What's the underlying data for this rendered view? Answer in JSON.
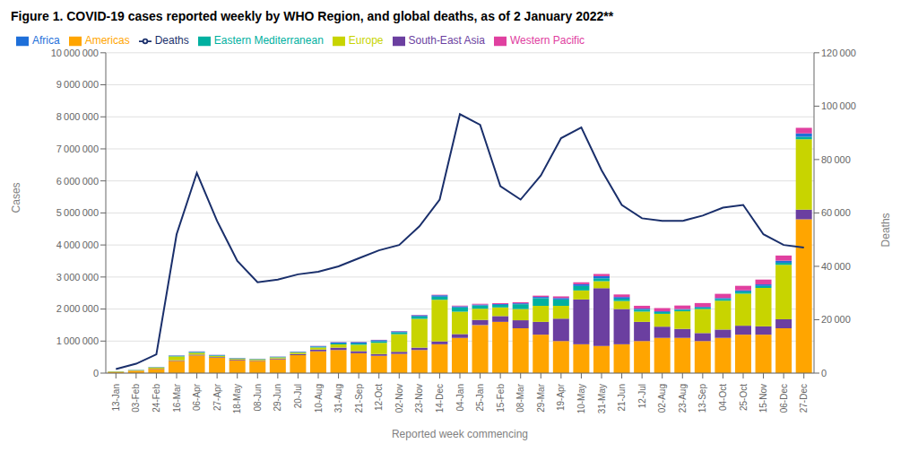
{
  "chart_data": {
    "type": "bar",
    "title": "Figure 1. COVID-19 cases reported weekly by WHO Region, and global deaths, as of 2 January 2022**",
    "x_label": "Reported week commencing",
    "y_label": "Cases",
    "y2_label": "Deaths",
    "stacked": true,
    "grid": true,
    "legend": "upper left",
    "categories": [
      "13-Jan",
      "03-Feb",
      "24-Feb",
      "16-Mar",
      "06-Apr",
      "27-Apr",
      "18-May",
      "08-Jun",
      "29-Jun",
      "20-Jul",
      "10-Aug",
      "31-Aug",
      "21-Sep",
      "12-Oct",
      "02-Nov",
      "23-Nov",
      "14-Dec",
      "04-Jan",
      "25-Jan",
      "15-Feb",
      "08-Mar",
      "29-Mar",
      "19-Apr",
      "10-May",
      "31-May",
      "21-Jun",
      "12-Jul",
      "02-Aug",
      "23-Aug",
      "13-Sep",
      "04-Oct",
      "25-Oct",
      "15-Nov",
      "06-Dec",
      "27-Dec"
    ],
    "ylim": [
      0,
      10000000
    ],
    "yticks": [
      0,
      {
        "value": 1000000,
        "label": "1 000 000"
      },
      {
        "value": 2000000,
        "label": "2 000 000"
      },
      {
        "value": 3000000,
        "label": "3 000 000"
      },
      {
        "value": 4000000,
        "label": "4 000 000"
      },
      {
        "value": 5000000,
        "label": "5 000 000"
      },
      {
        "value": 6000000,
        "label": "6 000 000"
      },
      {
        "value": 7000000,
        "label": "7 000 000"
      },
      {
        "value": 8000000,
        "label": "8 000 000"
      },
      {
        "value": 9000000,
        "label": "9 000 000"
      },
      {
        "value": 10000000,
        "label": "10 000 000"
      }
    ],
    "y2lim": [
      0,
      120000
    ],
    "y2ticks": [
      0,
      {
        "value": 20000,
        "label": "20 000"
      },
      {
        "value": 40000,
        "label": "40 000"
      },
      {
        "value": 60000,
        "label": "60 000"
      },
      {
        "value": 80000,
        "label": "80 000"
      },
      {
        "value": 100000,
        "label": "100 000"
      },
      {
        "value": 120000,
        "label": "120 000"
      }
    ],
    "series": [
      {
        "name": "Americas",
        "type": "bar",
        "color": "#FFA500",
        "values": [
          40000,
          70000,
          130000,
          380000,
          550000,
          480000,
          400000,
          380000,
          430000,
          560000,
          680000,
          720000,
          620000,
          540000,
          600000,
          720000,
          900000,
          1100000,
          1500000,
          1600000,
          1400000,
          1200000,
          1000000,
          900000,
          850000,
          900000,
          1000000,
          1100000,
          1100000,
          1000000,
          1100000,
          1200000,
          1200000,
          1400000,
          4800000
        ]
      },
      {
        "name": "South-East Asia",
        "type": "bar",
        "color": "#6B3FA0",
        "values": [
          3000,
          6000,
          10000,
          20000,
          25000,
          20000,
          20000,
          18000,
          25000,
          35000,
          55000,
          75000,
          65000,
          55000,
          65000,
          75000,
          90000,
          120000,
          160000,
          180000,
          250000,
          400000,
          700000,
          1400000,
          1800000,
          1100000,
          600000,
          350000,
          280000,
          250000,
          260000,
          280000,
          260000,
          280000,
          300000
        ]
      },
      {
        "name": "Europe",
        "type": "bar",
        "color": "#C8D400",
        "values": [
          8000,
          15000,
          30000,
          120000,
          60000,
          35000,
          25000,
          30000,
          35000,
          45000,
          65000,
          100000,
          200000,
          350000,
          550000,
          900000,
          1300000,
          700000,
          350000,
          270000,
          350000,
          500000,
          400000,
          280000,
          220000,
          250000,
          320000,
          400000,
          550000,
          750000,
          900000,
          1000000,
          1200000,
          1700000,
          2200000
        ]
      },
      {
        "name": "Eastern Mediterranean",
        "type": "bar",
        "color": "#00B0A0",
        "values": [
          4000,
          7000,
          10000,
          18000,
          22000,
          18000,
          13000,
          10000,
          12000,
          15000,
          22000,
          30000,
          38000,
          48000,
          60000,
          75000,
          95000,
          130000,
          100000,
          80000,
          150000,
          240000,
          200000,
          140000,
          90000,
          75000,
          60000,
          55000,
          50000,
          45000,
          55000,
          65000,
          60000,
          65000,
          80000
        ]
      },
      {
        "name": "Africa",
        "type": "bar",
        "color": "#1E6FD9",
        "values": [
          1500,
          3000,
          6000,
          12000,
          15000,
          13000,
          11000,
          9000,
          11000,
          15000,
          22000,
          38000,
          45000,
          38000,
          30000,
          38000,
          45000,
          38000,
          30000,
          27000,
          30000,
          38000,
          45000,
          55000,
          65000,
          50000,
          32000,
          25000,
          20000,
          22000,
          30000,
          40000,
          50000,
          65000,
          100000
        ]
      },
      {
        "name": "Western Pacific",
        "type": "bar",
        "color": "#E040A0",
        "values": [
          800,
          1500,
          2500,
          4000,
          5000,
          4000,
          3200,
          2500,
          3000,
          4000,
          5500,
          6500,
          7000,
          8000,
          10000,
          12000,
          16000,
          20000,
          24000,
          28000,
          32000,
          40000,
          50000,
          60000,
          70000,
          80000,
          90000,
          100000,
          110000,
          120000,
          130000,
          140000,
          150000,
          160000,
          180000
        ]
      },
      {
        "name": "Deaths",
        "type": "line",
        "axis": "y2",
        "color": "#1A2F6B",
        "values": [
          1500,
          3500,
          7000,
          52000,
          75000,
          57000,
          42000,
          34000,
          35000,
          37000,
          38000,
          40000,
          43000,
          46000,
          48000,
          55000,
          65000,
          97000,
          93000,
          70000,
          65000,
          74000,
          88000,
          92000,
          76000,
          63000,
          58000,
          57000,
          57000,
          59000,
          62000,
          63000,
          52000,
          48000,
          47000
        ]
      }
    ]
  }
}
